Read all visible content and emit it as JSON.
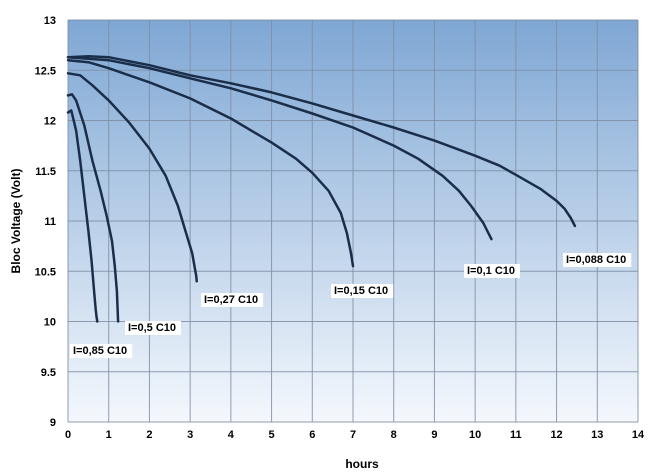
{
  "chart_data": {
    "type": "line",
    "xlabel": "hours",
    "ylabel": "Bloc Voltage (Volt)",
    "xlim": [
      0,
      14
    ],
    "ylim": [
      9,
      13
    ],
    "x_ticks": [
      "0",
      "1",
      "2",
      "3",
      "4",
      "5",
      "6",
      "7",
      "8",
      "9",
      "10",
      "11",
      "12",
      "13",
      "14"
    ],
    "y_ticks": [
      "9",
      "9.5",
      "10",
      "10.5",
      "11",
      "11.5",
      "12",
      "12.5",
      "13"
    ],
    "grid": true,
    "colors": {
      "background_top": "#7fa7d4",
      "background_bottom": "#f4f8fd",
      "line": "#1a2e4a",
      "grid": "#7f8da3"
    },
    "series": [
      {
        "name": "I=0,85 C10",
        "x": [
          0,
          0.08,
          0.2,
          0.3,
          0.4,
          0.5,
          0.58,
          0.64,
          0.68,
          0.7,
          0.72
        ],
        "y": [
          12.08,
          12.1,
          11.9,
          11.6,
          11.25,
          10.9,
          10.6,
          10.3,
          10.12,
          10.05,
          10.0
        ]
      },
      {
        "name": "I=0,5 C10",
        "x": [
          0,
          0.1,
          0.2,
          0.4,
          0.6,
          0.8,
          0.95,
          1.08,
          1.15,
          1.2,
          1.22,
          1.23
        ],
        "y": [
          12.25,
          12.26,
          12.2,
          11.95,
          11.6,
          11.3,
          11.05,
          10.8,
          10.55,
          10.3,
          10.1,
          10.0
        ]
      },
      {
        "name": "I=0,27 C10",
        "x": [
          0,
          0.3,
          0.6,
          1.0,
          1.5,
          2.0,
          2.4,
          2.7,
          2.9,
          3.05,
          3.12,
          3.15,
          3.16
        ],
        "y": [
          12.47,
          12.45,
          12.35,
          12.2,
          11.98,
          11.72,
          11.45,
          11.15,
          10.88,
          10.68,
          10.52,
          10.45,
          10.4
        ]
      },
      {
        "name": "I=0,15 C10",
        "x": [
          0,
          0.5,
          1,
          2,
          3,
          4,
          5,
          5.6,
          6.0,
          6.4,
          6.7,
          6.85,
          6.95,
          7.0
        ],
        "y": [
          12.6,
          12.58,
          12.52,
          12.38,
          12.22,
          12.02,
          11.78,
          11.62,
          11.48,
          11.3,
          11.08,
          10.88,
          10.68,
          10.55
        ]
      },
      {
        "name": "I=0,1 C10",
        "x": [
          0,
          1,
          2,
          3,
          4,
          5,
          6,
          7,
          8,
          8.6,
          9.2,
          9.6,
          9.9,
          10.2,
          10.4
        ],
        "y": [
          12.63,
          12.6,
          12.52,
          12.42,
          12.32,
          12.2,
          12.07,
          11.93,
          11.75,
          11.62,
          11.45,
          11.3,
          11.15,
          10.98,
          10.82
        ]
      },
      {
        "name": "I=0,088 C10",
        "x": [
          0,
          0.5,
          1,
          2,
          3,
          4,
          5,
          6,
          7,
          8,
          9,
          10,
          10.6,
          11,
          11.6,
          12,
          12.2,
          12.35,
          12.45
        ],
        "y": [
          12.63,
          12.64,
          12.63,
          12.55,
          12.45,
          12.37,
          12.28,
          12.17,
          12.05,
          11.93,
          11.8,
          11.65,
          11.55,
          11.46,
          11.32,
          11.2,
          11.12,
          11.03,
          10.95
        ]
      }
    ],
    "annotations": [
      {
        "text": "I=0,85 C10",
        "series": 0
      },
      {
        "text": "I=0,5 C10",
        "series": 1
      },
      {
        "text": "I=0,27 C10",
        "series": 2
      },
      {
        "text": "I=0,15 C10",
        "series": 3
      },
      {
        "text": "I=0,1 C10",
        "series": 4
      },
      {
        "text": "I=0,088 C10",
        "series": 5
      }
    ]
  }
}
